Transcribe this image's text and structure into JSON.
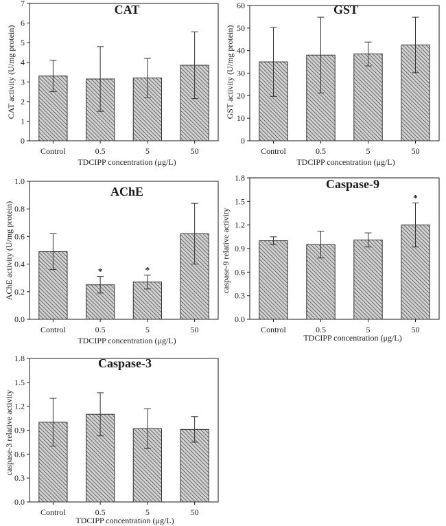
{
  "chart_data": [
    {
      "type": "bar",
      "title": "CAT",
      "xlabel": "TDCIPP concentration (μg/L)",
      "ylabel": "CAT activity (U/mg protein)",
      "categories": [
        "Control",
        "0.5",
        "5",
        "50"
      ],
      "values": [
        3.3,
        3.15,
        3.2,
        3.85
      ],
      "errors": [
        0.8,
        1.65,
        1.0,
        1.7
      ],
      "significance": [
        "",
        "",
        "",
        ""
      ],
      "ylim": [
        0,
        7
      ],
      "yticks": [
        "0",
        "1",
        "2",
        "3",
        "4",
        "5",
        "6",
        "7"
      ]
    },
    {
      "type": "bar",
      "title": "GST",
      "xlabel": "TDCIPP concentration (μg/L)",
      "ylabel": "GST activity (U/mg protein)",
      "categories": [
        "Control",
        "0.5",
        "5",
        "50"
      ],
      "values": [
        35,
        38,
        38.5,
        42.5
      ],
      "errors": [
        15.3,
        16.8,
        5.3,
        12.3
      ],
      "significance": [
        "",
        "",
        "",
        ""
      ],
      "ylim": [
        0,
        60
      ],
      "yticks": [
        "0",
        "10",
        "20",
        "30",
        "40",
        "50",
        "60"
      ]
    },
    {
      "type": "bar",
      "title": "AChE",
      "xlabel": "TDCIPP concentration (μg/L)",
      "ylabel": "AChE activity (U/mg protein)",
      "categories": [
        "Control",
        "0.5",
        "5",
        "50"
      ],
      "values": [
        0.49,
        0.25,
        0.27,
        0.62
      ],
      "errors": [
        0.13,
        0.06,
        0.05,
        0.22
      ],
      "significance": [
        "",
        "*",
        "*",
        ""
      ],
      "ylim": [
        0,
        1.0
      ],
      "yticks": [
        "0.0",
        "0.2",
        "0.4",
        "0.6",
        "0.8",
        "1.0"
      ]
    },
    {
      "type": "bar",
      "title": "Caspase-9",
      "xlabel": "TDCIPP concentration (μg/L)",
      "ylabel": "caspase-9 relative activity",
      "categories": [
        "Control",
        "0.5",
        "5",
        "50"
      ],
      "values": [
        1.0,
        0.95,
        1.01,
        1.2
      ],
      "errors": [
        0.05,
        0.17,
        0.09,
        0.28
      ],
      "significance": [
        "",
        "",
        "",
        "*"
      ],
      "ylim": [
        0,
        1.8
      ],
      "yticks": [
        "0.0",
        "0.3",
        "0.6",
        "0.9",
        "1.2",
        "1.5",
        "1.8"
      ]
    },
    {
      "type": "bar",
      "title": "Caspase-3",
      "xlabel": "TDCIPP concentration (μg/L)",
      "ylabel": "caspase-3 relative activity",
      "categories": [
        "Control",
        "0.5",
        "5",
        "50"
      ],
      "values": [
        1.0,
        1.1,
        0.92,
        0.91
      ],
      "errors": [
        0.3,
        0.27,
        0.25,
        0.16
      ],
      "significance": [
        "",
        "",
        "",
        ""
      ],
      "ylim": [
        0,
        1.8
      ],
      "yticks": [
        "0.0",
        "0.3",
        "0.6",
        "0.9",
        "1.2",
        "1.5",
        "1.8"
      ]
    }
  ]
}
